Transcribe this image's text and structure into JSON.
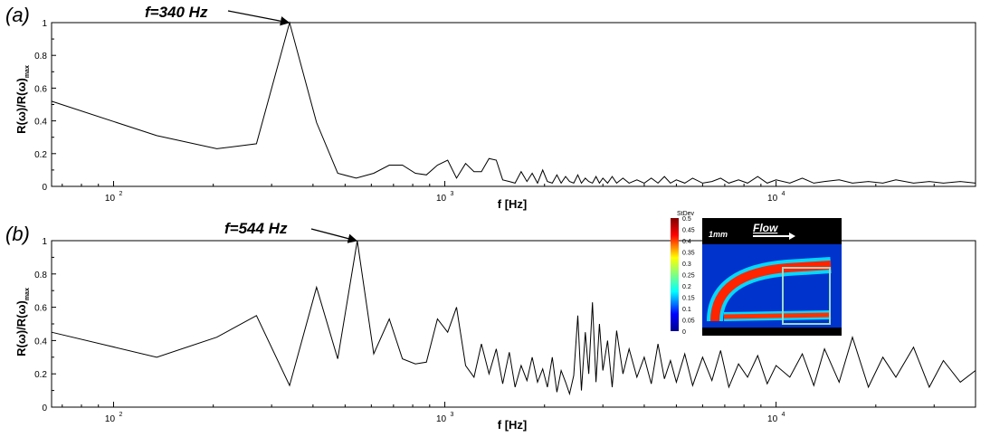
{
  "chart_data": [
    {
      "type": "line",
      "panel_label": "(a)",
      "xlabel": "f [Hz]",
      "ylabel": "R(ω)/R(ω)",
      "ylabel_sub": "max",
      "xscale": "log",
      "xlim": [
        65,
        40000
      ],
      "ylim": [
        0,
        1
      ],
      "yticks": [
        "0",
        "0.2",
        "0.4",
        "0.6",
        "0.8",
        "1"
      ],
      "xticks": [
        {
          "base": "10",
          "exp": "2",
          "value": 100
        },
        {
          "base": "10",
          "exp": "3",
          "value": 1000
        },
        {
          "base": "10",
          "exp": "4",
          "value": 10000
        }
      ],
      "annotation": {
        "text": "f=340 Hz",
        "x": 340,
        "y": 1.0
      },
      "series": [
        {
          "x": [
            65,
            135,
            205,
            270,
            340,
            410,
            475,
            540,
            610,
            680,
            745,
            815,
            880,
            950,
            1020,
            1085,
            1155,
            1225,
            1290,
            1360,
            1430,
            1495,
            1565,
            1630,
            1700,
            1770,
            1835,
            1905,
            1975,
            2040,
            2110,
            2180,
            2245,
            2315,
            2380,
            2450,
            2520,
            2585,
            2655,
            2720,
            2790,
            2860,
            2930,
            3000,
            3100,
            3200,
            3300,
            3450,
            3600,
            3800,
            4000,
            4200,
            4400,
            4600,
            4800,
            5000,
            5300,
            5600,
            6000,
            6400,
            6800,
            7200,
            7700,
            8200,
            8800,
            9400,
            10000,
            11000,
            12000,
            13000,
            14000,
            15500,
            17000,
            19000,
            21000,
            23000,
            26000,
            29000,
            32000,
            36000,
            40000
          ],
          "y": [
            0.52,
            0.31,
            0.23,
            0.26,
            1.0,
            0.39,
            0.08,
            0.05,
            0.08,
            0.13,
            0.13,
            0.08,
            0.07,
            0.13,
            0.16,
            0.05,
            0.14,
            0.09,
            0.09,
            0.17,
            0.16,
            0.04,
            0.03,
            0.02,
            0.09,
            0.03,
            0.08,
            0.02,
            0.1,
            0.03,
            0.02,
            0.07,
            0.02,
            0.06,
            0.03,
            0.02,
            0.07,
            0.02,
            0.05,
            0.03,
            0.02,
            0.06,
            0.02,
            0.05,
            0.02,
            0.06,
            0.02,
            0.05,
            0.02,
            0.04,
            0.02,
            0.05,
            0.02,
            0.06,
            0.02,
            0.04,
            0.02,
            0.05,
            0.02,
            0.03,
            0.05,
            0.02,
            0.04,
            0.02,
            0.06,
            0.02,
            0.04,
            0.02,
            0.05,
            0.02,
            0.03,
            0.04,
            0.02,
            0.03,
            0.02,
            0.04,
            0.02,
            0.03,
            0.02,
            0.03,
            0.02
          ]
        }
      ]
    },
    {
      "type": "line",
      "panel_label": "(b)",
      "xlabel": "f [Hz]",
      "ylabel": "R(ω)/R(ω)",
      "ylabel_sub": "max",
      "xscale": "log",
      "xlim": [
        65,
        40000
      ],
      "ylim": [
        0,
        1
      ],
      "yticks": [
        "0",
        "0.2",
        "0.4",
        "0.6",
        "0.8",
        "1"
      ],
      "xticks": [
        {
          "base": "10",
          "exp": "2",
          "value": 100
        },
        {
          "base": "10",
          "exp": "3",
          "value": 1000
        },
        {
          "base": "10",
          "exp": "4",
          "value": 10000
        }
      ],
      "annotation": {
        "text": "f=544 Hz",
        "x": 544,
        "y": 1.0
      },
      "series": [
        {
          "x": [
            65,
            135,
            205,
            270,
            340,
            410,
            475,
            544,
            610,
            680,
            745,
            815,
            880,
            950,
            1020,
            1085,
            1155,
            1225,
            1290,
            1360,
            1430,
            1495,
            1565,
            1630,
            1700,
            1770,
            1835,
            1905,
            1975,
            2040,
            2110,
            2180,
            2245,
            2315,
            2380,
            2450,
            2520,
            2585,
            2655,
            2720,
            2790,
            2860,
            2930,
            3000,
            3100,
            3200,
            3300,
            3450,
            3600,
            3800,
            4000,
            4200,
            4400,
            4600,
            4800,
            5000,
            5300,
            5600,
            6000,
            6400,
            6800,
            7200,
            7700,
            8200,
            8800,
            9400,
            10000,
            11000,
            12000,
            13000,
            14000,
            15500,
            17000,
            19000,
            21000,
            23000,
            26000,
            29000,
            32000,
            36000,
            40000
          ],
          "y": [
            0.45,
            0.3,
            0.42,
            0.55,
            0.13,
            0.72,
            0.29,
            1.0,
            0.32,
            0.53,
            0.29,
            0.26,
            0.27,
            0.53,
            0.45,
            0.6,
            0.25,
            0.18,
            0.38,
            0.2,
            0.35,
            0.14,
            0.33,
            0.12,
            0.25,
            0.16,
            0.3,
            0.15,
            0.23,
            0.12,
            0.3,
            0.09,
            0.22,
            0.15,
            0.08,
            0.19,
            0.55,
            0.1,
            0.45,
            0.2,
            0.63,
            0.15,
            0.5,
            0.22,
            0.4,
            0.12,
            0.46,
            0.2,
            0.35,
            0.18,
            0.3,
            0.14,
            0.38,
            0.17,
            0.28,
            0.15,
            0.32,
            0.13,
            0.3,
            0.16,
            0.34,
            0.12,
            0.26,
            0.18,
            0.31,
            0.14,
            0.25,
            0.18,
            0.32,
            0.13,
            0.35,
            0.15,
            0.42,
            0.12,
            0.3,
            0.18,
            0.36,
            0.12,
            0.28,
            0.15,
            0.22
          ]
        }
      ]
    }
  ],
  "inset": {
    "colorbar_title": "StDev",
    "colorbar_ticks": [
      "0.5",
      "0.45",
      "0.4",
      "0.35",
      "0.3",
      "0.25",
      "0.2",
      "0.15",
      "0.1",
      "0.05",
      "0"
    ],
    "scale_label": "1mm",
    "flow_label": "Flow"
  }
}
